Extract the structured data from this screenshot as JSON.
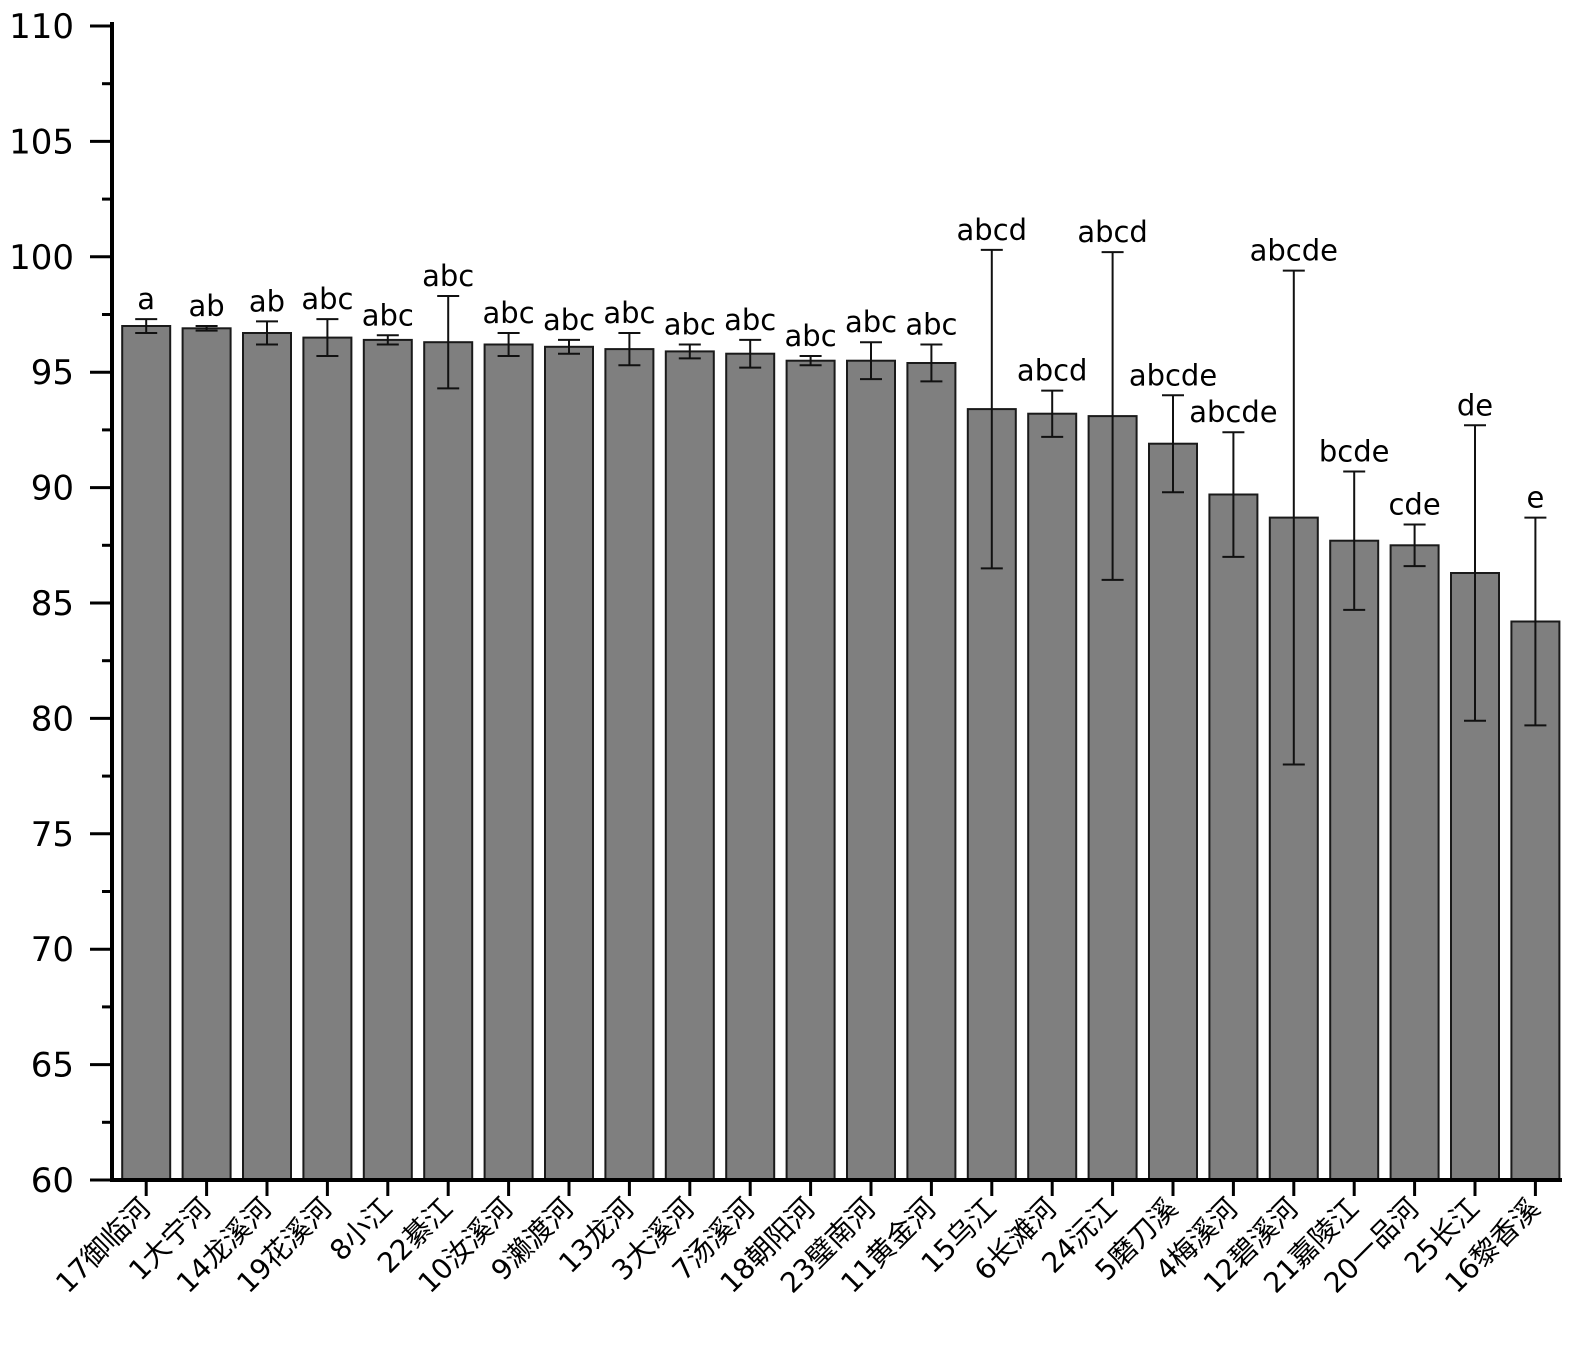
{
  "chart_data": {
    "type": "bar",
    "ylim": [
      60,
      110
    ],
    "yticks": [
      60,
      65,
      70,
      75,
      80,
      85,
      90,
      95,
      100,
      105,
      110
    ],
    "ytick_labels": [
      "60",
      "65",
      "70",
      "75",
      "80",
      "85",
      "90",
      "95",
      "100",
      "105",
      "110"
    ],
    "grid": false,
    "bar_color": "#7f7f7f",
    "categories": [
      "17御临河",
      "1大宁河",
      "14龙溪河",
      "19花溪河",
      "8小江",
      "22綦江",
      "10汝溪河",
      "9濑渡河",
      "13龙河",
      "3大溪河",
      "7汤溪河",
      "18朝阳河",
      "23璧南河",
      "11黄金河",
      "15乌江",
      "6长滩河",
      "24沅江",
      "5磨刀溪",
      "4梅溪河",
      "12碧溪河",
      "21嘉陵江",
      "20一品河",
      "25长江",
      "16黎香溪"
    ],
    "values": [
      97.0,
      96.9,
      96.7,
      96.5,
      96.4,
      96.3,
      96.2,
      96.1,
      96.0,
      95.9,
      95.8,
      95.5,
      95.5,
      95.4,
      93.4,
      93.2,
      93.1,
      91.9,
      89.7,
      88.7,
      87.7,
      87.5,
      86.3,
      84.2
    ],
    "errors": [
      0.3,
      0.1,
      0.5,
      0.8,
      0.2,
      2.0,
      0.5,
      0.3,
      0.7,
      0.3,
      0.6,
      0.2,
      0.8,
      0.8,
      6.9,
      1.0,
      7.1,
      2.1,
      2.7,
      10.7,
      3.0,
      0.9,
      6.4,
      4.5
    ],
    "significance_letters": [
      "a",
      "ab",
      "ab",
      "abc",
      "abc",
      "abc",
      "abc",
      "abc",
      "abc",
      "abc",
      "abc",
      "abc",
      "abc",
      "abc",
      "abcd",
      "abcd",
      "abcd",
      "abcde",
      "abcde",
      "abcde",
      "bcde",
      "cde",
      "de",
      "e"
    ]
  }
}
